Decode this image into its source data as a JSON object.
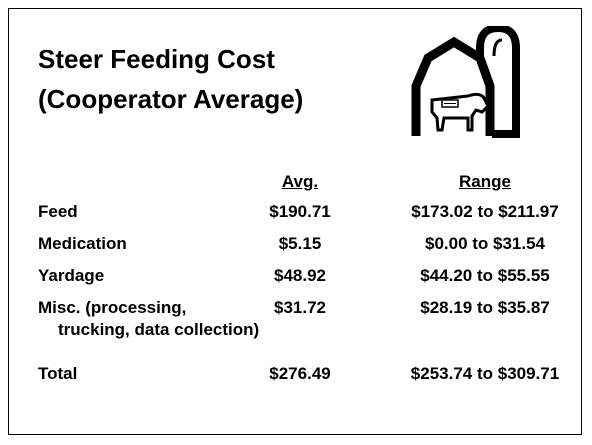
{
  "title": {
    "line1": "Steer Feeding Cost",
    "line2": "(Cooperator Average)"
  },
  "table": {
    "header": [
      "Avg.",
      "Range"
    ],
    "rows": [
      [
        "Feed",
        "$190.71",
        "$173.02 to $211.97"
      ],
      [
        "Medication",
        "$5.15",
        "$0.00 to $31.54"
      ],
      [
        "Yardage",
        "$48.92",
        "$44.20 to $55.55"
      ],
      [
        "Misc. (processing,",
        "$31.72",
        "$28.19 to $35.87"
      ],
      [
        "trucking, data collection)"
      ],
      [
        "Total",
        "$276.49",
        "$253.74 to $309.71"
      ]
    ]
  }
}
